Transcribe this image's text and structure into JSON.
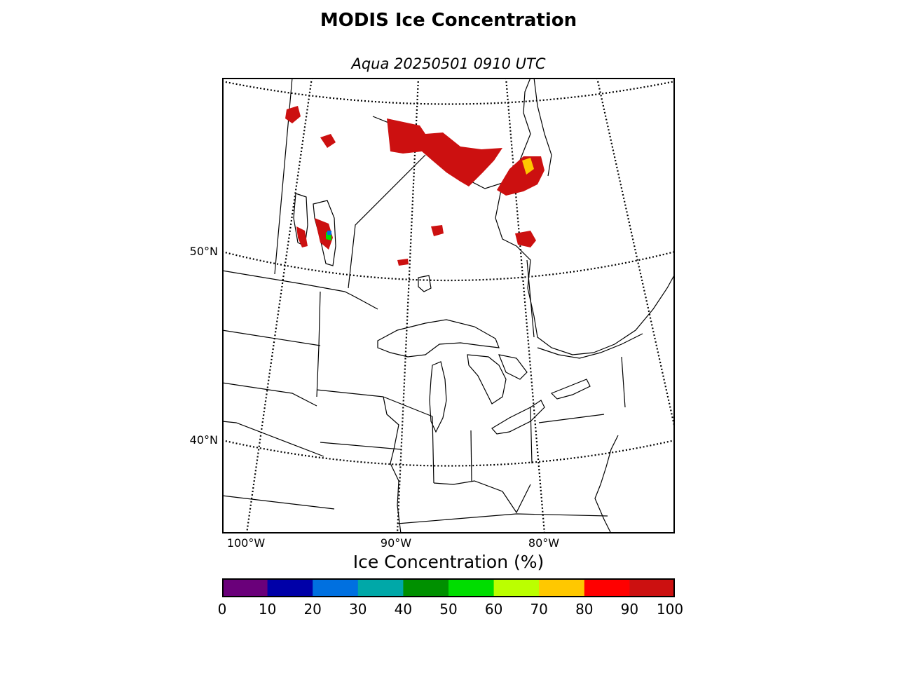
{
  "title": "MODIS Ice Concentration",
  "subtitle": "Aqua 20250501 0910 UTC",
  "lat_labels": [
    "50°N",
    "40°N"
  ],
  "lon_labels": [
    "100°W",
    "90°W",
    "80°W"
  ],
  "colorbar": {
    "label": "Ice Concentration (%)",
    "ticks": [
      "0",
      "10",
      "20",
      "30",
      "40",
      "50",
      "60",
      "70",
      "80",
      "90",
      "100"
    ],
    "colors": [
      "#6a007a",
      "#0000a8",
      "#0070e0",
      "#00a8a8",
      "#009000",
      "#00dd00",
      "#bbff00",
      "#ffc800",
      "#ff0000",
      "#cc1010"
    ]
  }
}
